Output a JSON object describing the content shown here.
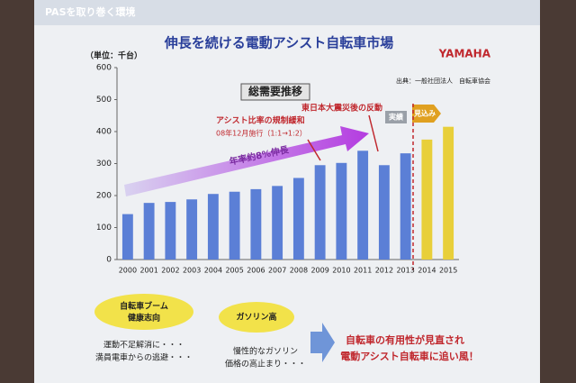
{
  "slide": {
    "header": "PASを取り巻く環境",
    "brand": "YAMAHA",
    "bubble1": [
      "自転車ブーム",
      "健康志向"
    ],
    "bubble1_note": [
      "運動不足解消に・・・",
      "満員電車からの逃避・・・"
    ],
    "bubble2": "ガソリン高",
    "bubble2_note": [
      "慢性的なガソリン",
      "価格の高止まり・・・"
    ],
    "conclusion": [
      "自転車の有用性が見直され",
      "電動アシスト自転車に追い風！"
    ]
  },
  "chart_data": {
    "type": "bar",
    "title": "伸長を続ける電動アシスト自転車市場",
    "subtitle": "総需要推移",
    "y_label": "（単位：千台）",
    "source": "出典：一般社団法人　自転車協会",
    "categories": [
      "2000",
      "2001",
      "2002",
      "2003",
      "2004",
      "2005",
      "2006",
      "2007",
      "2008",
      "2009",
      "2010",
      "2011",
      "2012",
      "2013",
      "2014",
      "2015"
    ],
    "values": [
      142,
      177,
      180,
      188,
      205,
      212,
      220,
      230,
      255,
      295,
      302,
      340,
      295,
      332,
      375,
      415
    ],
    "colors": [
      "#5b7fd6",
      "#5b7fd6",
      "#5b7fd6",
      "#5b7fd6",
      "#5b7fd6",
      "#5b7fd6",
      "#5b7fd6",
      "#5b7fd6",
      "#5b7fd6",
      "#5b7fd6",
      "#5b7fd6",
      "#5b7fd6",
      "#5b7fd6",
      "#5b7fd6",
      "#e8cf3a",
      "#e8cf3a"
    ],
    "ylim": [
      0,
      600
    ],
    "yticks": [
      0,
      100,
      200,
      300,
      400,
      500,
      600
    ],
    "grid": false,
    "annotations": {
      "growth": "年率約8%伸長",
      "reform": "アシスト比率の規制緩和",
      "reform_date": "08年12月施行（1:1→1:2）",
      "quake": "東日本大震災後の反動",
      "actual": "実績",
      "forecast": "見込み"
    }
  }
}
